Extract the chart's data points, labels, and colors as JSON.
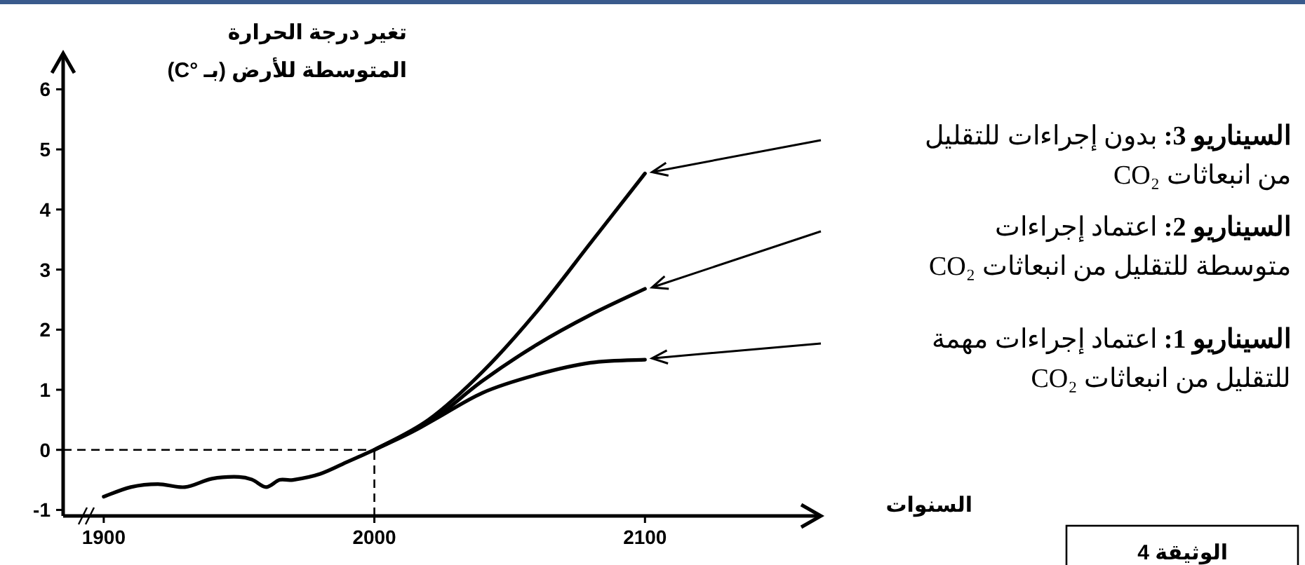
{
  "chart_data": {
    "type": "line",
    "ylabel": "تغير درجة الحرارة\nالمتوسطة للأرض (بـ °C)",
    "xlabel": "السنوات",
    "xlim": [
      1885,
      2165
    ],
    "ylim": [
      -1.1,
      6.6
    ],
    "xticks": [
      1900,
      2000,
      2100
    ],
    "yticks": [
      -1,
      0,
      1,
      2,
      3,
      4,
      5,
      6
    ],
    "grid": false,
    "line_style": "solid",
    "marker": "none",
    "series": [
      {
        "color": "#000000",
        "x": [
          1900,
          1910,
          1920,
          1930,
          1940,
          1950,
          1955,
          1960,
          1965,
          1970,
          1980,
          1990,
          1995,
          2000
        ],
        "values": [
          -0.78,
          -0.62,
          -0.57,
          -0.62,
          -0.48,
          -0.45,
          -0.5,
          -0.62,
          -0.5,
          -0.5,
          -0.4,
          -0.2,
          -0.1,
          0
        ]
      },
      {
        "color": "#000000",
        "x": [
          2000,
          2020,
          2040,
          2060,
          2080,
          2100
        ],
        "values": [
          0,
          0.45,
          0.95,
          1.25,
          1.45,
          1.5
        ]
      },
      {
        "color": "#000000",
        "x": [
          2000,
          2020,
          2040,
          2060,
          2080,
          2100
        ],
        "values": [
          0,
          0.45,
          1.15,
          1.75,
          2.25,
          2.68
        ]
      },
      {
        "color": "#000000",
        "x": [
          2000,
          2020,
          2040,
          2060,
          2080,
          2100
        ],
        "values": [
          0,
          0.5,
          1.3,
          2.3,
          3.45,
          4.6
        ]
      }
    ],
    "ref_lines": [
      {
        "axis": "y",
        "value": 0,
        "line_style": "dashed"
      },
      {
        "axis": "x",
        "value": 2000,
        "line_style": "dashed"
      }
    ],
    "annotations": [
      "السيناريو 3: بدون إجراءات للتقليل\nمن انبعاثات CO₂",
      "السيناريو 2: اعتماد إجراءات\nمتوسطة للتقليل من انبعاثات CO₂",
      "السيناريو 1: اعتماد إجراءات مهمة\nللتقليل من انبعاثات CO₂",
      "الوثيقة 4"
    ]
  }
}
